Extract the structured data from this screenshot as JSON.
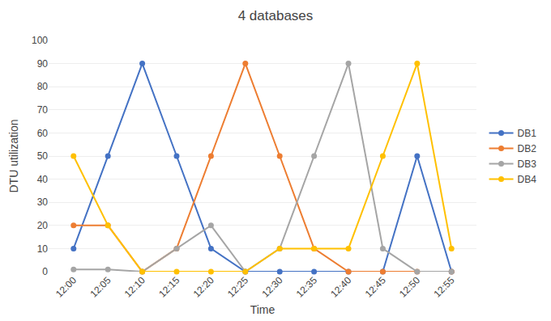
{
  "chart_data": {
    "type": "line",
    "title": "4 databases",
    "xlabel": "Time",
    "ylabel": "DTU utilization",
    "categories": [
      "12:00",
      "12:05",
      "12:10",
      "12:15",
      "12:20",
      "12:25",
      "12:30",
      "12:35",
      "12:40",
      "12:45",
      "12:50",
      "12:55"
    ],
    "series": [
      {
        "name": "DB1",
        "color": "#4472C4",
        "values": [
          10,
          50,
          90,
          50,
          10,
          0,
          0,
          0,
          0,
          0,
          50,
          0
        ]
      },
      {
        "name": "DB2",
        "color": "#ED7D31",
        "values": [
          20,
          20,
          0,
          10,
          50,
          90,
          50,
          10,
          0,
          0,
          0,
          0
        ]
      },
      {
        "name": "DB3",
        "color": "#A5A5A5",
        "values": [
          1,
          1,
          0,
          10,
          20,
          0,
          10,
          50,
          90,
          10,
          0,
          0
        ]
      },
      {
        "name": "DB4",
        "color": "#FFC000",
        "values": [
          50,
          20,
          0,
          0,
          0,
          0,
          10,
          10,
          10,
          50,
          90,
          10
        ]
      }
    ],
    "ylim": [
      0,
      100
    ],
    "yticks": [
      0,
      10,
      20,
      30,
      40,
      50,
      60,
      70,
      80,
      90,
      100
    ],
    "grid": "y",
    "legend": "right",
    "marker": "circle",
    "line_style": "solid"
  }
}
